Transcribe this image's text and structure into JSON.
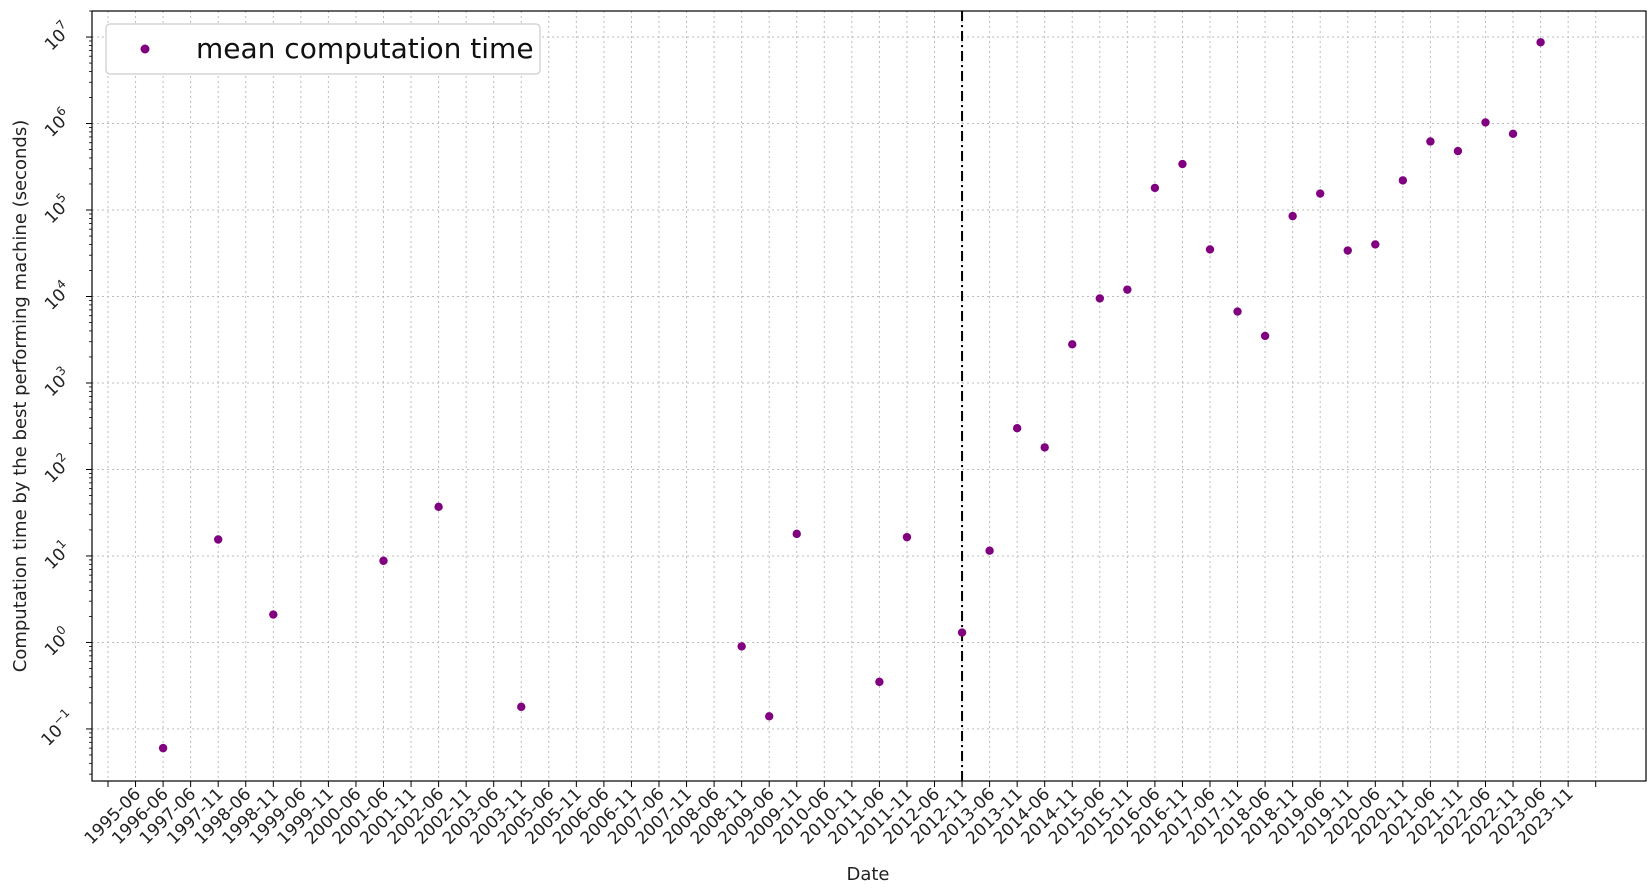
{
  "chart_data": {
    "type": "scatter",
    "xlabel": "Date",
    "ylabel": "Computation time by the best performing machine (seconds)",
    "yscale": "log",
    "ylim": [
      0.025,
      20000000
    ],
    "grid": true,
    "legend_position": "top-left",
    "x_tick_labels": [
      "1995-06",
      "1996-06",
      "1997-06",
      "1997-11",
      "1998-06",
      "1998-11",
      "1999-06",
      "1999-11",
      "2000-06",
      "2001-06",
      "2001-11",
      "2002-06",
      "2002-11",
      "2003-06",
      "2003-11",
      "2005-06",
      "2005-11",
      "2006-06",
      "2006-11",
      "2007-06",
      "2007-11",
      "2008-06",
      "2008-11",
      "2009-06",
      "2009-11",
      "2010-06",
      "2010-11",
      "2011-06",
      "2011-11",
      "2012-06",
      "2012-11",
      "2013-06",
      "2013-11",
      "2014-06",
      "2014-11",
      "2015-06",
      "2015-11",
      "2016-06",
      "2016-11",
      "2017-06",
      "2017-11",
      "2018-06",
      "2018-11",
      "2019-06",
      "2019-11",
      "2020-06",
      "2020-11",
      "2021-06",
      "2021-11",
      "2022-06",
      "2022-11",
      "2023-06",
      "2023-11"
    ],
    "y_tick_labels": [
      "10^-1",
      "10^0",
      "10^1",
      "10^2",
      "10^3",
      "10^4",
      "10^5",
      "10^6",
      "10^7"
    ],
    "vertical_line": {
      "x": "2012-11",
      "style": "dash-dot",
      "color": "#000000"
    },
    "series": [
      {
        "name": "mean computation time",
        "color": "#800080",
        "points": [
          {
            "x": "1996-06",
            "y": 0.06
          },
          {
            "x": "1997-11",
            "y": 15.5
          },
          {
            "x": "1998-11",
            "y": 2.1
          },
          {
            "x": "2001-06",
            "y": 8.8
          },
          {
            "x": "2002-06",
            "y": 37
          },
          {
            "x": "2003-11",
            "y": 0.18
          },
          {
            "x": "2008-11",
            "y": 0.9
          },
          {
            "x": "2009-06",
            "y": 0.14
          },
          {
            "x": "2009-11",
            "y": 18
          },
          {
            "x": "2011-06",
            "y": 0.35
          },
          {
            "x": "2011-11",
            "y": 16.5
          },
          {
            "x": "2012-11",
            "y": 1.3
          },
          {
            "x": "2013-06",
            "y": 11.5
          },
          {
            "x": "2013-11",
            "y": 300
          },
          {
            "x": "2014-06",
            "y": 180
          },
          {
            "x": "2014-11",
            "y": 2800
          },
          {
            "x": "2015-06",
            "y": 9500
          },
          {
            "x": "2015-11",
            "y": 12000
          },
          {
            "x": "2016-06",
            "y": 180000
          },
          {
            "x": "2016-11",
            "y": 340000
          },
          {
            "x": "2017-06",
            "y": 35000
          },
          {
            "x": "2017-11",
            "y": 6700
          },
          {
            "x": "2018-06",
            "y": 3500
          },
          {
            "x": "2018-11",
            "y": 85000
          },
          {
            "x": "2019-06",
            "y": 155000
          },
          {
            "x": "2019-11",
            "y": 34000
          },
          {
            "x": "2020-06",
            "y": 40000
          },
          {
            "x": "2020-11",
            "y": 220000
          },
          {
            "x": "2021-06",
            "y": 620000
          },
          {
            "x": "2021-11",
            "y": 480000
          },
          {
            "x": "2022-06",
            "y": 1030000
          },
          {
            "x": "2022-11",
            "y": 760000
          },
          {
            "x": "2023-06",
            "y": 8700000
          }
        ]
      }
    ]
  }
}
